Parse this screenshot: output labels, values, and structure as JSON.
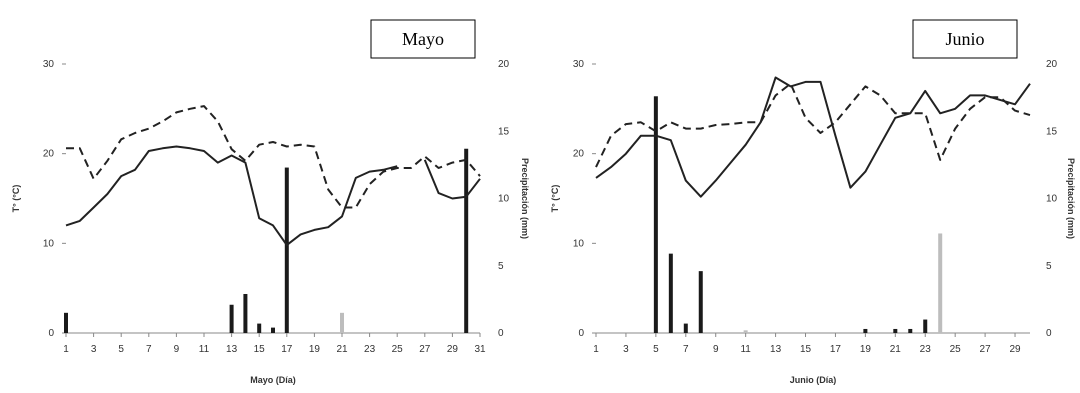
{
  "chart_data": [
    {
      "type": "line",
      "title_box": "Mayo",
      "xlabel": "Mayo (Día)",
      "ylabel": "T° (°C)",
      "y2label": "Precipitación (mm)",
      "ylim": [
        0,
        30
      ],
      "y2lim": [
        0,
        20
      ],
      "yticks": [
        "0",
        "10",
        "20",
        "30"
      ],
      "y2ticks": [
        "0",
        "5",
        "10",
        "15",
        "20"
      ],
      "xticks": [
        "1",
        "3",
        "5",
        "7",
        "9",
        "11",
        "13",
        "15",
        "17",
        "19",
        "21",
        "23",
        "25",
        "27",
        "29",
        "31"
      ],
      "x": [
        1,
        2,
        3,
        4,
        5,
        6,
        7,
        8,
        9,
        10,
        11,
        12,
        13,
        14,
        15,
        16,
        17,
        18,
        19,
        20,
        21,
        22,
        23,
        24,
        25,
        26,
        27,
        28,
        29,
        30,
        31
      ],
      "series": [
        {
          "style": "solid",
          "values": [
            12,
            12.5,
            14,
            15.5,
            17.5,
            18.2,
            20.3,
            20.6,
            20.8,
            20.6,
            20.3,
            19,
            19.8,
            19,
            12.8,
            12,
            9.8,
            11,
            11.5,
            11.8,
            13,
            17.3,
            18,
            18.2,
            18.6,
            null,
            19.3,
            15.6,
            15,
            15.2,
            17.2
          ]
        },
        {
          "style": "dashed",
          "values": [
            20.6,
            20.6,
            17.2,
            19.2,
            21.6,
            22.3,
            22.8,
            23.6,
            24.6,
            25,
            25.3,
            23.6,
            20.5,
            19.2,
            21,
            21.3,
            20.8,
            21,
            20.8,
            16,
            14,
            14,
            16.6,
            18,
            18.4,
            18.4,
            19.7,
            18.4,
            19,
            19.3,
            17.5
          ]
        },
        {
          "style": "bars",
          "values": [
            1.5,
            0,
            0,
            0,
            0,
            0,
            0,
            0,
            0,
            0,
            0,
            0,
            2.1,
            2.9,
            0.7,
            0.4,
            12.3,
            0,
            0,
            0,
            1.5,
            0,
            0,
            0,
            0,
            0,
            0,
            0,
            0,
            13.7,
            0
          ]
        }
      ]
    },
    {
      "type": "line",
      "title_box": "Junio",
      "xlabel": "Junio (Día)",
      "ylabel": "T° (°C)",
      "y2label": "Precipitación (mm)",
      "ylim": [
        0,
        30
      ],
      "y2lim": [
        0,
        20
      ],
      "yticks": [
        "0",
        "10",
        "20",
        "30"
      ],
      "y2ticks": [
        "0",
        "5",
        "10",
        "15",
        "20"
      ],
      "xticks": [
        "1",
        "3",
        "5",
        "7",
        "9",
        "11",
        "13",
        "15",
        "17",
        "19",
        "21",
        "23",
        "25",
        "27",
        "29"
      ],
      "x": [
        1,
        2,
        3,
        4,
        5,
        6,
        7,
        8,
        9,
        10,
        11,
        12,
        13,
        14,
        15,
        16,
        17,
        18,
        19,
        20,
        21,
        22,
        23,
        24,
        25,
        26,
        27,
        28,
        29,
        30
      ],
      "series": [
        {
          "style": "solid",
          "values": [
            17.3,
            18.5,
            20,
            22,
            22,
            21.5,
            17,
            15.2,
            17,
            19,
            21,
            23.5,
            28.5,
            27.5,
            28,
            28,
            22,
            16.2,
            18,
            21,
            24,
            24.5,
            27,
            24.5,
            25,
            26.5,
            26.5,
            26,
            25.5,
            27.8
          ]
        },
        {
          "style": "dashed",
          "values": [
            18.5,
            22,
            23.3,
            23.5,
            22.5,
            23.5,
            22.8,
            22.8,
            23.2,
            23.3,
            23.5,
            23.5,
            26.5,
            27.8,
            24,
            22.3,
            23.5,
            25.5,
            27.5,
            26.5,
            24.5,
            24.5,
            24.5,
            19.3,
            22.8,
            25,
            26.3,
            26.3,
            24.8,
            24.3
          ]
        },
        {
          "style": "bars",
          "values": [
            0,
            0,
            0,
            0,
            17.6,
            5.9,
            0.7,
            4.6,
            0,
            0,
            0.2,
            0,
            0,
            0,
            0,
            0,
            0,
            0,
            0.3,
            0,
            0.3,
            0.3,
            1,
            7.4,
            0,
            0,
            0,
            0,
            0,
            0
          ]
        }
      ]
    }
  ]
}
